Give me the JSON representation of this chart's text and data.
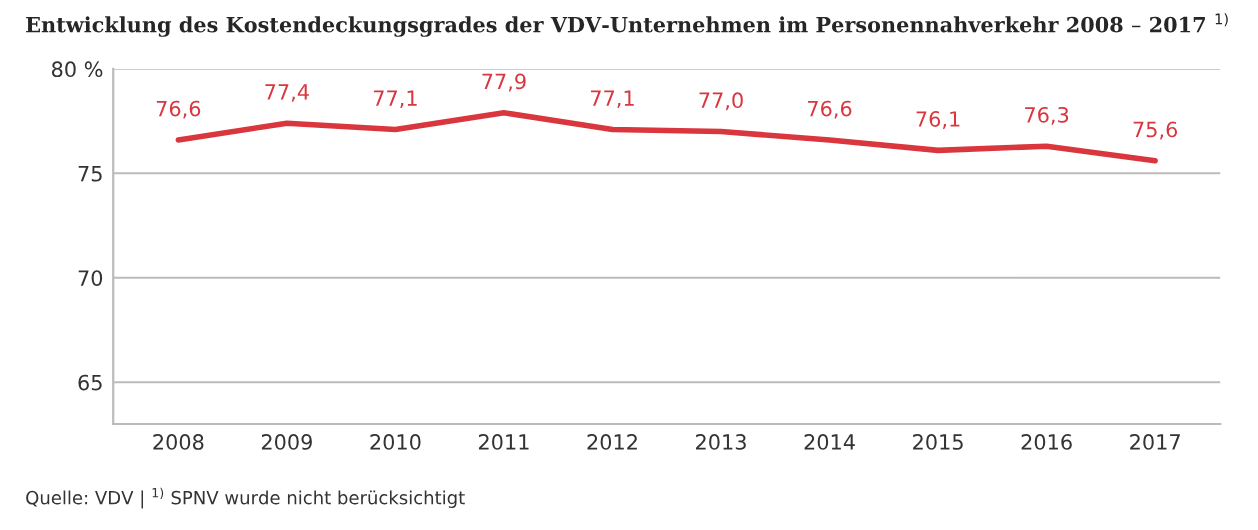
{
  "chart_data": {
    "type": "line",
    "title": "Entwicklung des Kostendeckungsgrades der VDV-Unternehmen im Personennahverkehr 2008 – 2017 $^{1)}$",
    "categories": [
      "2008",
      "2009",
      "2010",
      "2011",
      "2012",
      "2013",
      "2014",
      "2015",
      "2016",
      "2017"
    ],
    "series": [
      {
        "color": "#d9363e",
        "values": [
          76.6,
          77.4,
          77.1,
          77.9,
          77.1,
          77.0,
          76.6,
          76.1,
          76.3,
          75.6
        ],
        "value_labels": [
          "76,6",
          "77,4",
          "77,1",
          "77,9",
          "77,1",
          "77,0",
          "76,6",
          "76,1",
          "76,3",
          "75,6"
        ]
      }
    ],
    "ylim": [
      63,
      80
    ],
    "yticks": [
      65,
      70,
      75,
      {
        "value": 80,
        "label": "80 %"
      }
    ],
    "grid": "y",
    "marker": "none",
    "line_style": "solid",
    "legend": false,
    "annotations": [
      "Quelle: VDV | $^{1)}$ SPNV wurde nicht berücksichtigt"
    ]
  }
}
